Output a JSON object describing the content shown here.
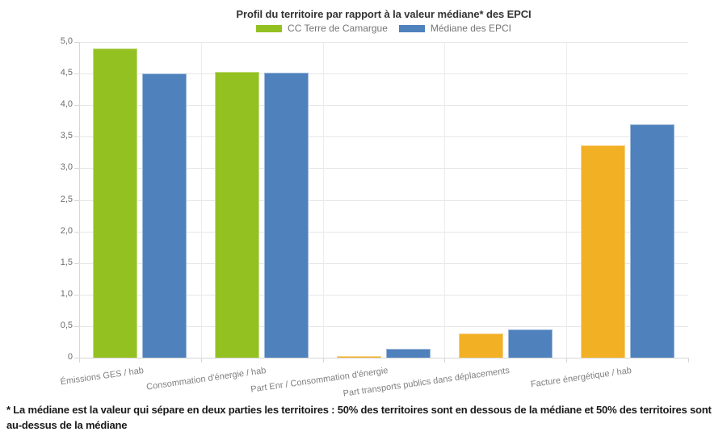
{
  "chart_data": {
    "type": "bar",
    "title": "Profil du territoire par rapport à la valeur médiane* des EPCI",
    "categories": [
      "Émissions GES / hab",
      "Consommation d'énergie / hab",
      "Part Enr / Consommation d'énergie",
      "Part transports publics dans déplacements",
      "Facture énergétique / hab"
    ],
    "series": [
      {
        "name": "CC Terre de Camargue",
        "color": "#94c122",
        "point_colors": [
          "#94c122",
          "#94c122",
          "#f2b025",
          "#f2b025",
          "#f2b025"
        ],
        "values": [
          4.9,
          4.53,
          0.03,
          0.38,
          3.36
        ]
      },
      {
        "name": "Médiane des EPCI",
        "color": "#4f81bc",
        "point_colors": [
          "#4f81bc",
          "#4f81bc",
          "#4f81bc",
          "#4f81bc",
          "#4f81bc"
        ],
        "values": [
          4.5,
          4.51,
          0.14,
          0.45,
          3.7
        ]
      }
    ],
    "ylim": [
      0,
      5
    ],
    "ytick_values": [
      0,
      0.5,
      1,
      1.5,
      2,
      2.5,
      3,
      3.5,
      4,
      4.5,
      5
    ],
    "ytick_labels": [
      "0",
      "0,5",
      "1,0",
      "1,5",
      "2,0",
      "2,5",
      "3,0",
      "3,5",
      "4,0",
      "4,5",
      "5,0"
    ],
    "grid": true,
    "legend_position": "top"
  },
  "footnote": "* La médiane est la valeur qui sépare en deux parties les territoires : 50% des territoires sont en dessous de la médiane et 50% des territoires sont au-dessus de la médiane"
}
